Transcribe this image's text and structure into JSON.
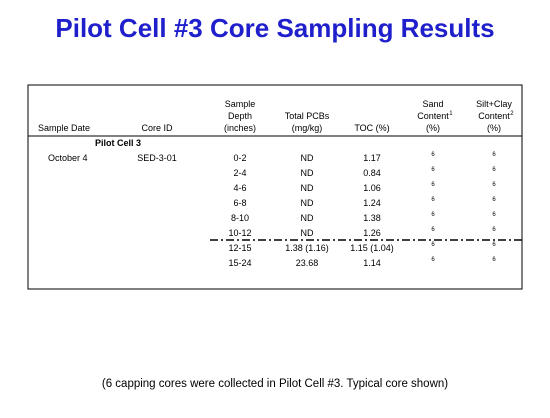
{
  "title": "Pilot Cell #3 Core Sampling Results",
  "table": {
    "columns": [
      {
        "lines": [
          "Sample Date"
        ]
      },
      {
        "lines": [
          "Core ID"
        ]
      },
      {
        "lines": [
          "Sample",
          "Depth",
          "(inches)"
        ]
      },
      {
        "lines": [
          "Total PCBs",
          "(mg/kg)"
        ]
      },
      {
        "lines": [
          "TOC (%)"
        ]
      },
      {
        "lines": [
          "Sand",
          "Content",
          "(%)"
        ],
        "note": "1"
      },
      {
        "lines": [
          "Silt+Clay",
          "Content",
          "(%)"
        ],
        "note": "2"
      }
    ],
    "group": "Pilot Cell 3",
    "sample_date": "October 4",
    "core_id": "SED-3-01",
    "rows": [
      [
        "0-2",
        "ND",
        "1.17",
        "6",
        "6"
      ],
      [
        "2-4",
        "ND",
        "0.84",
        "6",
        "6"
      ],
      [
        "4-6",
        "ND",
        "1.06",
        "6",
        "6"
      ],
      [
        "6-8",
        "ND",
        "1.24",
        "6",
        "6"
      ],
      [
        "8-10",
        "ND",
        "1.38",
        "6",
        "6"
      ],
      [
        "10-12",
        "ND",
        "1.26",
        "6",
        "6"
      ],
      [
        "12-15",
        "1.38 (1.16)",
        "1.15 (1.04)",
        "6",
        "6"
      ],
      [
        "15-24",
        "23.68",
        "1.14",
        "6",
        "6"
      ]
    ]
  },
  "caption": "(6 capping cores were collected in Pilot Cell #3. Typical core shown)"
}
